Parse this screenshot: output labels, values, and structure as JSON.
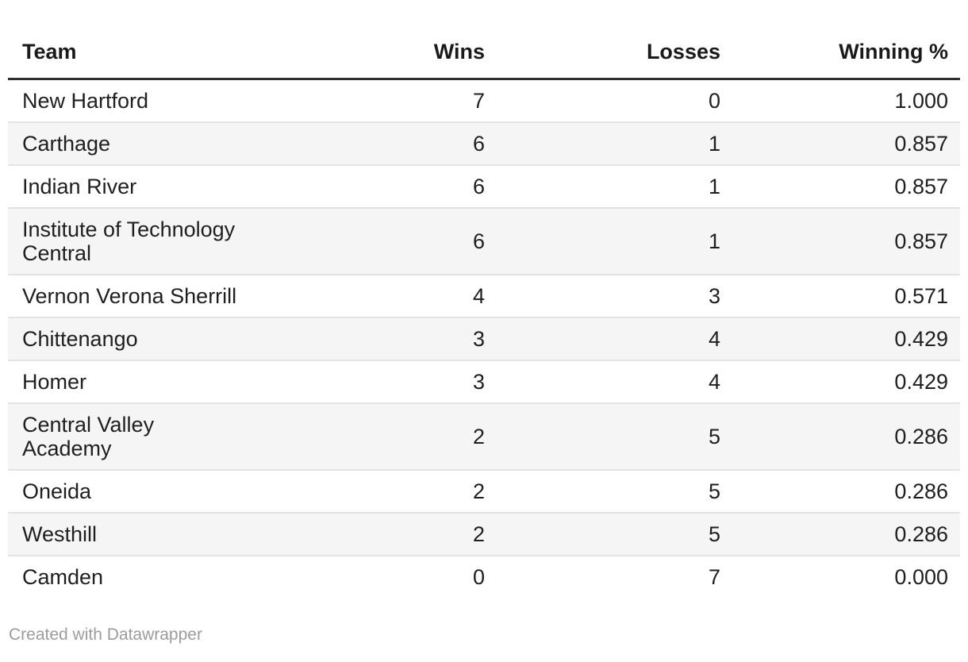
{
  "table": {
    "columns": [
      {
        "label": "Team",
        "align": "left"
      },
      {
        "label": "Wins",
        "align": "right"
      },
      {
        "label": "Losses",
        "align": "right"
      },
      {
        "label": "Winning %",
        "align": "right"
      }
    ],
    "rows": [
      {
        "team": "New Hartford",
        "wins": "7",
        "losses": "0",
        "winning_pct": "1.000"
      },
      {
        "team": "Carthage",
        "wins": "6",
        "losses": "1",
        "winning_pct": "0.857"
      },
      {
        "team": "Indian River",
        "wins": "6",
        "losses": "1",
        "winning_pct": "0.857"
      },
      {
        "team": "Institute of Technology\nCentral",
        "wins": "6",
        "losses": "1",
        "winning_pct": "0.857"
      },
      {
        "team": "Vernon Verona Sherrill",
        "wins": "4",
        "losses": "3",
        "winning_pct": "0.571"
      },
      {
        "team": "Chittenango",
        "wins": "3",
        "losses": "4",
        "winning_pct": "0.429"
      },
      {
        "team": "Homer",
        "wins": "3",
        "losses": "4",
        "winning_pct": "0.429"
      },
      {
        "team": "Central Valley\nAcademy",
        "wins": "2",
        "losses": "5",
        "winning_pct": "0.286"
      },
      {
        "team": "Oneida",
        "wins": "2",
        "losses": "5",
        "winning_pct": "0.286"
      },
      {
        "team": "Westhill",
        "wins": "2",
        "losses": "5",
        "winning_pct": "0.286"
      },
      {
        "team": "Camden",
        "wins": "0",
        "losses": "7",
        "winning_pct": "0.000"
      }
    ]
  },
  "footer": {
    "credit": "Created with Datawrapper"
  },
  "colors": {
    "header_rule": "#2e2e2e",
    "row_stripe": "#f5f5f5",
    "row_border": "#e3e3e3",
    "body_text": "#1f1f1f",
    "footer_text": "#9c9c9c"
  },
  "chart_data": {
    "type": "table",
    "title": "",
    "columns": [
      "Team",
      "Wins",
      "Losses",
      "Winning %"
    ],
    "teams": [
      "New Hartford",
      "Carthage",
      "Indian River",
      "Institute of Technology Central",
      "Vernon Verona Sherrill",
      "Chittenango",
      "Homer",
      "Central Valley Academy",
      "Oneida",
      "Westhill",
      "Camden"
    ],
    "wins": [
      7,
      6,
      6,
      6,
      4,
      3,
      3,
      2,
      2,
      2,
      0
    ],
    "losses": [
      0,
      1,
      1,
      1,
      3,
      4,
      4,
      5,
      5,
      5,
      7
    ],
    "winning_pct": [
      "1.000",
      "0.857",
      "0.857",
      "0.857",
      "0.571",
      "0.429",
      "0.429",
      "0.286",
      "0.286",
      "0.286",
      "0.000"
    ],
    "layout_hints": {
      "striped_rows": true,
      "stripe_color": "#f5f5f5",
      "header_rule_color": "#2e2e2e",
      "numeric_columns_right_aligned": true
    }
  }
}
